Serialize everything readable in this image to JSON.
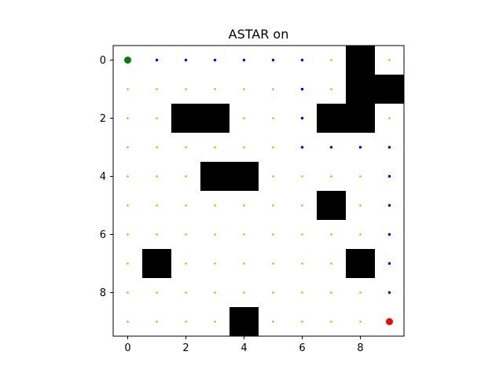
{
  "chart_data": {
    "type": "heatmap",
    "title": "ASTAR on",
    "xlabel": "",
    "ylabel": "",
    "grid_size": [
      10,
      10
    ],
    "xlim": [
      -0.5,
      9.5
    ],
    "ylim": [
      9.5,
      -0.5
    ],
    "x_ticks": [
      0,
      2,
      4,
      6,
      8
    ],
    "y_ticks": [
      0,
      2,
      4,
      6,
      8
    ],
    "grid": false,
    "obstacles": [
      [
        8,
        0
      ],
      [
        8,
        1
      ],
      [
        9,
        1
      ],
      [
        2,
        2
      ],
      [
        3,
        2
      ],
      [
        7,
        2
      ],
      [
        8,
        2
      ],
      [
        3,
        4
      ],
      [
        4,
        4
      ],
      [
        7,
        5
      ],
      [
        1,
        7
      ],
      [
        8,
        7
      ],
      [
        4,
        9
      ]
    ],
    "path": [
      [
        1,
        0
      ],
      [
        2,
        0
      ],
      [
        3,
        0
      ],
      [
        4,
        0
      ],
      [
        5,
        0
      ],
      [
        6,
        0
      ],
      [
        6,
        1
      ],
      [
        6,
        2
      ],
      [
        6,
        3
      ],
      [
        7,
        3
      ],
      [
        8,
        3
      ],
      [
        9,
        3
      ],
      [
        9,
        4
      ],
      [
        9,
        5
      ],
      [
        9,
        6
      ],
      [
        9,
        7
      ],
      [
        9,
        8
      ]
    ],
    "start": [
      0,
      0
    ],
    "goal": [
      9,
      9
    ],
    "colors": {
      "obstacle": "#000000",
      "free": "#bfbf00",
      "path": "#0000ff",
      "start": "#008000",
      "goal": "#ff0000"
    }
  }
}
